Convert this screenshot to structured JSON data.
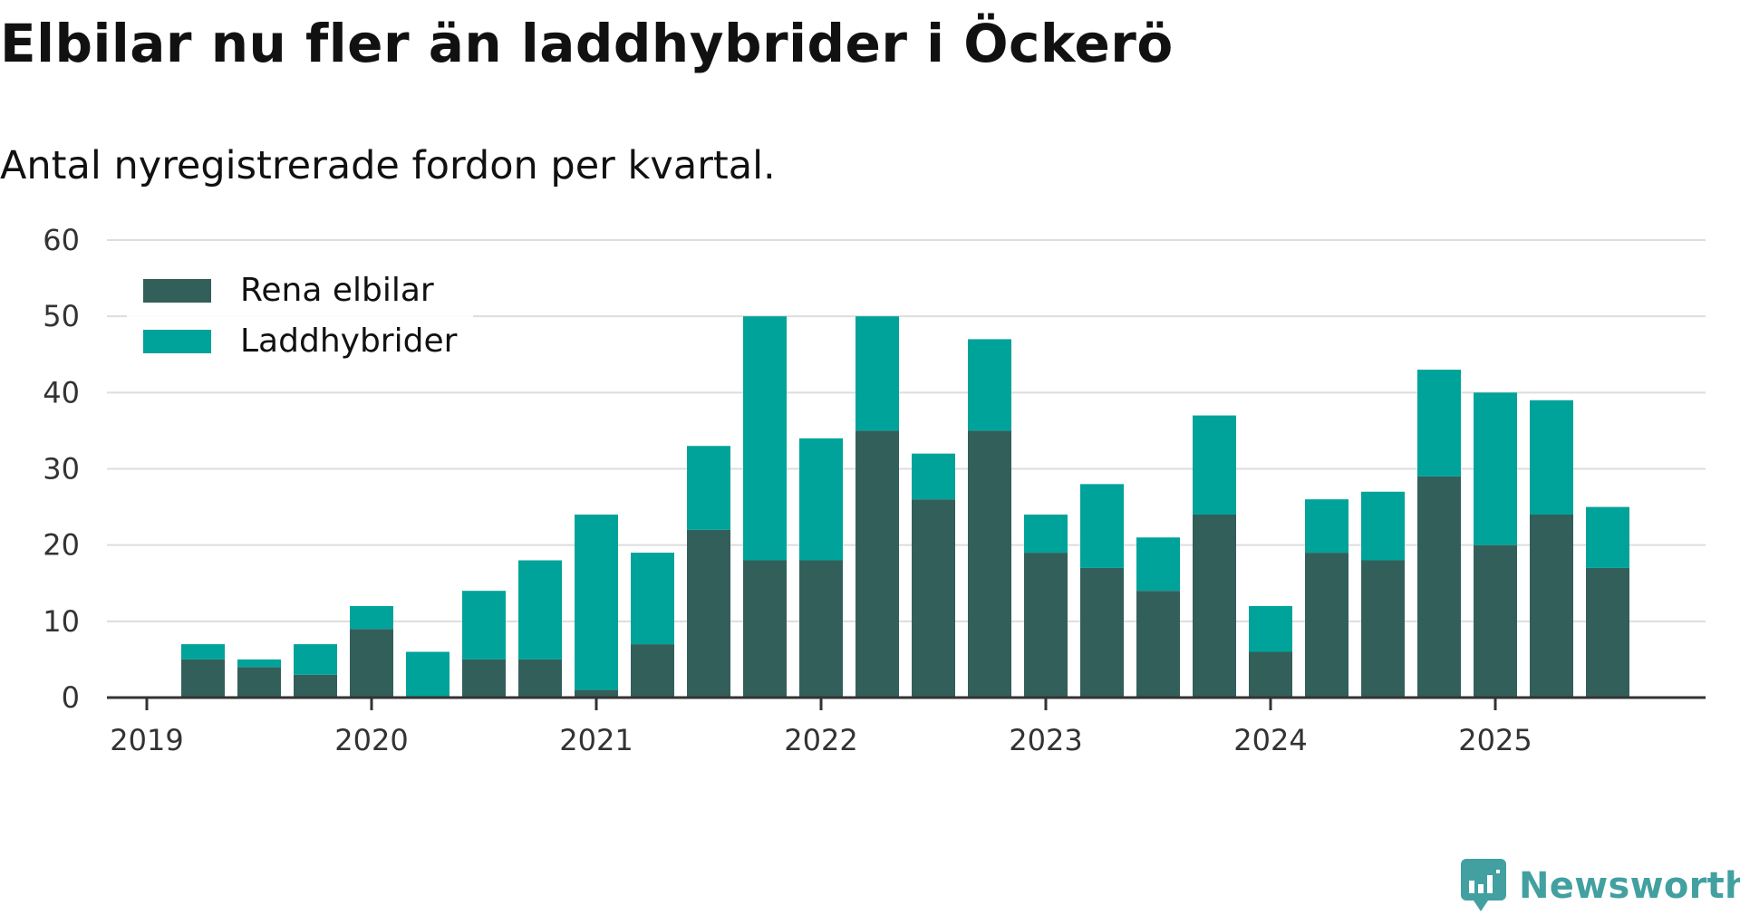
{
  "title": "Elbilar nu fler än laddhybrider i Öckerö",
  "subtitle": "Antal nyregistrerade fordon per kvartal.",
  "brand": "Newsworthy",
  "colors": {
    "elbilar": "#335f5b",
    "laddhybrider": "#00a39a",
    "grid": "#dddddd",
    "axis": "#333333",
    "brand": "#43a0a0"
  },
  "chart_data": {
    "type": "bar",
    "stacked": true,
    "title": "Elbilar nu fler än laddhybrider i Öckerö",
    "subtitle": "Antal nyregistrerade fordon per kvartal.",
    "xlabel": "",
    "ylabel": "",
    "ylim": [
      0,
      60
    ],
    "yticks": [
      0,
      10,
      20,
      30,
      40,
      50,
      60
    ],
    "xticks": [
      "2019",
      "2020",
      "2021",
      "2022",
      "2023",
      "2024",
      "2025"
    ],
    "legend_position": "top-left",
    "categories": [
      "2019 Q2",
      "2019 Q3",
      "2019 Q4",
      "2020 Q1",
      "2020 Q2",
      "2020 Q3",
      "2020 Q4",
      "2021 Q1",
      "2021 Q2",
      "2021 Q3",
      "2021 Q4",
      "2022 Q1",
      "2022 Q2",
      "2022 Q3",
      "2022 Q4",
      "2023 Q1",
      "2023 Q2",
      "2023 Q3",
      "2023 Q4",
      "2024 Q1",
      "2024 Q2",
      "2024 Q3",
      "2024 Q4",
      "2025 Q1",
      "2025 Q2",
      "2025 Q3"
    ],
    "series": [
      {
        "name": "Rena elbilar",
        "color": "#335f5b",
        "values": [
          5,
          4,
          3,
          9,
          0,
          5,
          5,
          1,
          7,
          22,
          18,
          18,
          35,
          26,
          35,
          19,
          17,
          14,
          24,
          6,
          19,
          18,
          29,
          20,
          24,
          17
        ]
      },
      {
        "name": "Laddhybrider",
        "color": "#00a39a",
        "values": [
          2,
          1,
          4,
          3,
          6,
          9,
          13,
          23,
          12,
          11,
          32,
          16,
          15,
          6,
          12,
          5,
          11,
          7,
          13,
          6,
          7,
          9,
          14,
          20,
          15,
          8
        ]
      }
    ]
  }
}
